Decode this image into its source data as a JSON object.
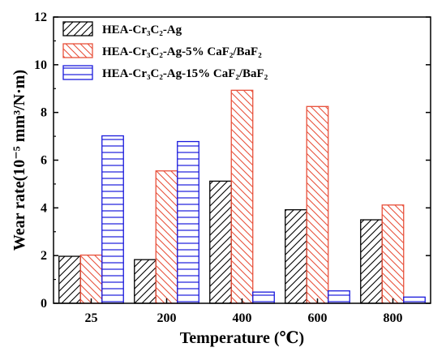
{
  "chart_data": {
    "type": "bar",
    "title": "",
    "xlabel": "Temperature (℃)",
    "ylabel": "Wear rate(10⁻⁵ mm³/N·m)",
    "categories": [
      "25",
      "200",
      "400",
      "600",
      "800"
    ],
    "ylim": [
      0,
      12
    ],
    "yticks": [
      "0",
      "2",
      "4",
      "6",
      "8",
      "10",
      "12"
    ],
    "legend_position": "top-left",
    "series": [
      {
        "name": "HEA-Cr₃C₂-Ag",
        "values": [
          1.97,
          1.83,
          5.12,
          3.92,
          3.5
        ],
        "color": "#000000",
        "pattern": "hatch-forward"
      },
      {
        "name": "HEA-Cr₃C₂-Ag-5% CaF₂/BaF₂",
        "values": [
          2.02,
          5.55,
          8.93,
          8.25,
          4.12
        ],
        "color": "#e8503a",
        "pattern": "hatch-backward"
      },
      {
        "name": "HEA-Cr₃C₂-Ag-15% CaF₂/BaF₂",
        "values": [
          7.02,
          6.78,
          0.47,
          0.52,
          0.26
        ],
        "color": "#1a1adc",
        "pattern": "hatch-horizontal"
      }
    ]
  }
}
